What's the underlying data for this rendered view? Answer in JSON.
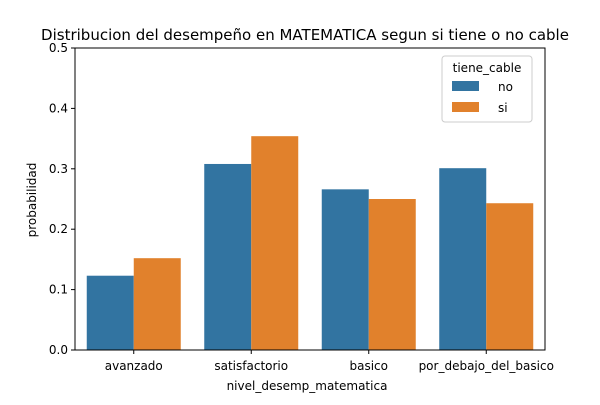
{
  "chart_data": {
    "type": "bar",
    "title": "Distribucion del desempeño en MATEMATICA segun si tiene o no cable",
    "xlabel": "nivel_desemp_matematica",
    "ylabel": "probabilidad",
    "categories": [
      "avanzado",
      "satisfactorio",
      "basico",
      "por_debajo_del_basico"
    ],
    "series": [
      {
        "name": "no",
        "color": "#3274a1",
        "values": [
          0.123,
          0.308,
          0.266,
          0.301
        ]
      },
      {
        "name": "si",
        "color": "#e1812c",
        "values": [
          0.152,
          0.354,
          0.25,
          0.243
        ]
      }
    ],
    "ylim": [
      0,
      0.5
    ],
    "yticks": [
      "0.0",
      "0.1",
      "0.2",
      "0.3",
      "0.4",
      "0.5"
    ],
    "grid": false,
    "legend": {
      "title": "tiene_cable",
      "placement": "top-right"
    }
  }
}
